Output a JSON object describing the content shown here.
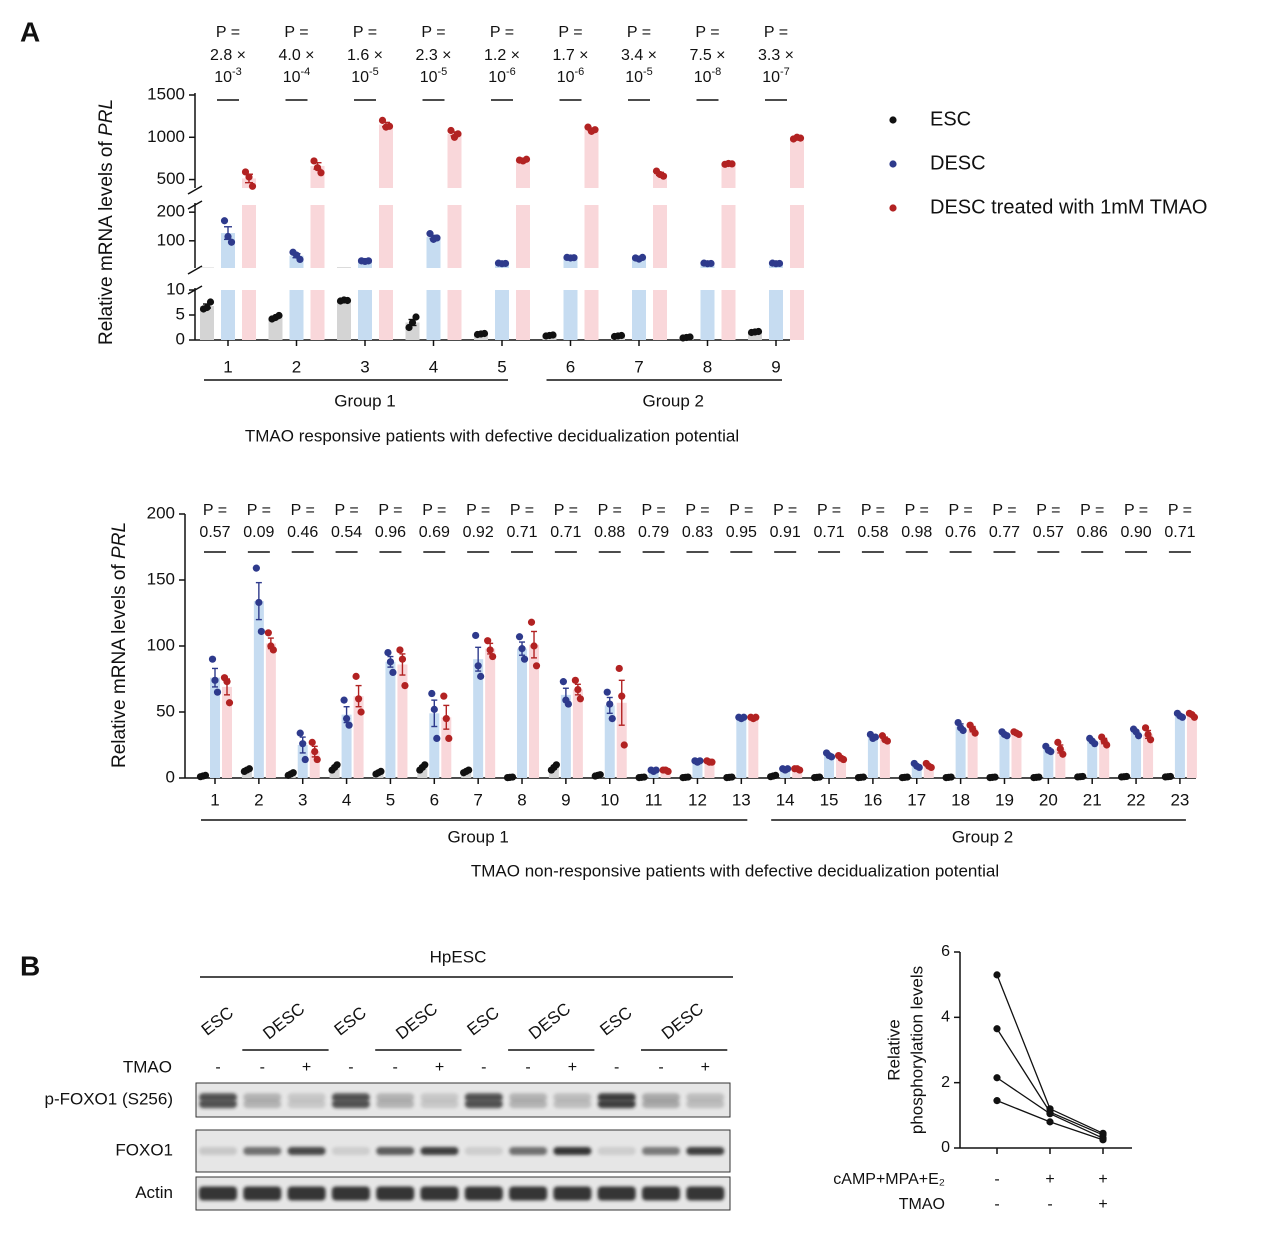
{
  "panels": [
    "A",
    "B"
  ],
  "chart_data": [
    {
      "type": "broken_bar",
      "ylabel": "Relative mRNA levels of ",
      "ylabel_italic": "PRL",
      "xlabel": "TMAO responsive patients with defective decidualization potential",
      "categories": [
        "1",
        "2",
        "3",
        "4",
        "5",
        "6",
        "7",
        "8",
        "9"
      ],
      "groups": [
        "Group 1",
        "Group 2"
      ],
      "p_prefix": "P =",
      "p_values": [
        {
          "coef": "2.8 ×",
          "base": "10",
          "exp": "-3"
        },
        {
          "coef": "4.0 ×",
          "base": "10",
          "exp": "-4"
        },
        {
          "coef": "1.6 ×",
          "base": "10",
          "exp": "-5"
        },
        {
          "coef": "2.3 ×",
          "base": "10",
          "exp": "-5"
        },
        {
          "coef": "1.2 ×",
          "base": "10",
          "exp": "-6"
        },
        {
          "coef": "1.7 ×",
          "base": "10",
          "exp": "-6"
        },
        {
          "coef": "3.4 ×",
          "base": "10",
          "exp": "-5"
        },
        {
          "coef": "7.5 ×",
          "base": "10",
          "exp": "-8"
        },
        {
          "coef": "3.3 ×",
          "base": "10",
          "exp": "-7"
        }
      ],
      "segments": [
        {
          "ylim": [
            0,
            10
          ],
          "yticks": [
            0,
            5,
            10
          ]
        },
        {
          "ylim": [
            5,
            225
          ],
          "yticks": [
            100,
            200
          ]
        },
        {
          "ylim": [
            400,
            1500
          ],
          "yticks": [
            500,
            1000,
            1500
          ]
        }
      ],
      "series": [
        {
          "name": "ESC",
          "color": "#111111",
          "bar_color": "#d4d4d4",
          "values": [
            6.8,
            4.5,
            7.9,
            3.5,
            1.2,
            0.9,
            0.8,
            0.5,
            1.6
          ],
          "errors": [
            0.4,
            0.2,
            0.1,
            0.6,
            0.1,
            0.1,
            0.1,
            0.1,
            0.1
          ],
          "points": [
            [
              6.2,
              6.5,
              7.6
            ],
            [
              4.2,
              4.5,
              4.9
            ],
            [
              7.8,
              8.0,
              7.9
            ],
            [
              2.5,
              3.5,
              4.6
            ],
            [
              1.1,
              1.2,
              1.3
            ],
            [
              0.8,
              0.9,
              1.0
            ],
            [
              0.7,
              0.8,
              0.9
            ],
            [
              0.4,
              0.5,
              0.6
            ],
            [
              1.5,
              1.6,
              1.7
            ]
          ]
        },
        {
          "name": "DESC",
          "color": "#2e3a8c",
          "bar_color": "#c6dcf1",
          "values": [
            127,
            48,
            29,
            113,
            21,
            41,
            39,
            21,
            21
          ],
          "errors": [
            22,
            7,
            1,
            6,
            1,
            1,
            2,
            1,
            1
          ],
          "points": [
            [
              170,
              115,
              95
            ],
            [
              60,
              50,
              35
            ],
            [
              30,
              28,
              30
            ],
            [
              125,
              105,
              110
            ],
            [
              22,
              20,
              21
            ],
            [
              42,
              40,
              41
            ],
            [
              40,
              36,
              42
            ],
            [
              22,
              20,
              21
            ],
            [
              22,
              20,
              21
            ]
          ]
        },
        {
          "name": "DESC treated with 1mM TMAO",
          "color": "#b22222",
          "bar_color": "#f9d7da",
          "values": [
            513,
            661,
            1150,
            1040,
            730,
            1093,
            567,
            685,
            990
          ],
          "errors": [
            50,
            38,
            26,
            23,
            6,
            15,
            18,
            3,
            6
          ],
          "points": [
            [
              590,
              530,
              420
            ],
            [
              720,
              640,
              580
            ],
            [
              1200,
              1120,
              1130
            ],
            [
              1080,
              1000,
              1040
            ],
            [
              730,
              720,
              740
            ],
            [
              1120,
              1070,
              1090
            ],
            [
              600,
              560,
              540
            ],
            [
              680,
              690,
              685
            ],
            [
              980,
              1000,
              990
            ]
          ]
        }
      ]
    },
    {
      "type": "bar",
      "ylabel": "Relative mRNA levels of ",
      "ylabel_italic": "PRL",
      "xlabel": "TMAO non-responsive patients with defective decidualization potential",
      "categories": [
        "1",
        "2",
        "3",
        "4",
        "5",
        "6",
        "7",
        "8",
        "9",
        "10",
        "11",
        "12",
        "13",
        "14",
        "15",
        "16",
        "17",
        "18",
        "19",
        "20",
        "21",
        "22",
        "23"
      ],
      "groups": [
        "Group 1",
        "Group 2"
      ],
      "p_prefix": "P =",
      "p_values": [
        "0.57",
        "0.09",
        "0.46",
        "0.54",
        "0.96",
        "0.69",
        "0.92",
        "0.71",
        "0.71",
        "0.88",
        "0.79",
        "0.83",
        "0.95",
        "0.91",
        "0.71",
        "0.58",
        "0.98",
        "0.76",
        "0.77",
        "0.57",
        "0.86",
        "0.90",
        "0.71"
      ],
      "ylim": [
        0,
        200
      ],
      "yticks": [
        0,
        50,
        100,
        150,
        200
      ],
      "series": [
        {
          "color": "#111111",
          "bar_color": "#d4d4d4",
          "values": [
            1.5,
            6,
            3,
            8,
            4,
            8,
            5,
            0.5,
            8,
            2,
            0.5,
            0.5,
            0.5,
            1.5,
            0.5,
            0.5,
            0.5,
            0.5,
            0.5,
            0.5,
            1,
            1,
            1
          ],
          "errors": [
            0.3,
            0.6,
            0.6,
            1.2,
            0.6,
            1.2,
            0.6,
            0.1,
            1.2,
            0.3,
            0.1,
            0.1,
            0.1,
            0.3,
            0.1,
            0.1,
            0.1,
            0.1,
            0.1,
            0.1,
            0.2,
            0.2,
            0.2
          ],
          "points": [
            [
              1,
              1.5,
              2
            ],
            [
              5,
              6,
              7
            ],
            [
              2,
              3,
              4
            ],
            [
              6,
              8,
              10
            ],
            [
              3,
              4,
              5
            ],
            [
              6,
              8,
              10
            ],
            [
              4,
              5,
              6
            ],
            [
              0.3,
              0.5,
              0.7
            ],
            [
              6,
              8,
              10
            ],
            [
              1.5,
              2,
              2.5
            ],
            [
              0.3,
              0.5,
              0.7
            ],
            [
              0.3,
              0.5,
              0.7
            ],
            [
              0.3,
              0.5,
              0.7
            ],
            [
              1,
              1.5,
              2
            ],
            [
              0.3,
              0.5,
              0.7
            ],
            [
              0.3,
              0.5,
              0.7
            ],
            [
              0.3,
              0.5,
              0.7
            ],
            [
              0.3,
              0.5,
              0.7
            ],
            [
              0.3,
              0.5,
              0.7
            ],
            [
              0.3,
              0.5,
              0.7
            ],
            [
              0.8,
              1,
              1.2
            ],
            [
              0.8,
              1,
              1.2
            ],
            [
              0.8,
              1,
              1.2
            ]
          ]
        },
        {
          "color": "#2e3a8c",
          "bar_color": "#c6dcf1",
          "values": [
            76,
            134,
            25,
            48,
            88,
            49,
            90,
            98,
            63,
            55,
            6,
            13,
            46,
            7,
            17,
            31,
            9,
            39,
            33,
            22,
            28,
            35,
            47
          ],
          "errors": [
            7,
            14,
            6,
            6,
            4,
            10,
            9,
            5,
            5,
            6,
            0.5,
            0.5,
            0.5,
            0.5,
            1,
            1,
            1,
            2,
            1,
            1,
            1,
            1,
            1
          ],
          "points": [
            [
              90,
              74,
              65
            ],
            [
              159,
              133,
              111
            ],
            [
              34,
              26,
              14
            ],
            [
              59,
              45,
              40
            ],
            [
              95,
              88,
              80
            ],
            [
              64,
              52,
              30
            ],
            [
              108,
              85,
              77
            ],
            [
              107,
              98,
              90
            ],
            [
              73,
              59,
              56
            ],
            [
              65,
              56,
              45
            ],
            [
              6,
              5,
              6
            ],
            [
              13,
              12,
              13
            ],
            [
              46,
              45,
              46
            ],
            [
              7,
              6,
              7
            ],
            [
              19,
              17,
              16
            ],
            [
              33,
              30,
              31
            ],
            [
              11,
              9,
              8
            ],
            [
              42,
              38,
              36
            ],
            [
              35,
              33,
              32
            ],
            [
              24,
              21,
              20
            ],
            [
              30,
              28,
              26
            ],
            [
              37,
              35,
              32
            ],
            [
              49,
              47,
              46
            ]
          ]
        },
        {
          "color": "#b22222",
          "bar_color": "#f9d7da",
          "values": [
            69,
            102,
            20,
            62,
            86,
            46,
            98,
            101,
            67,
            57,
            6,
            12,
            46,
            7,
            15,
            30,
            9,
            37,
            34,
            22,
            28,
            33,
            48
          ],
          "errors": [
            6,
            4,
            4,
            8,
            8,
            9,
            4,
            10,
            4,
            17,
            0.5,
            0.5,
            0.5,
            0.5,
            1,
            1,
            1,
            2,
            1,
            3,
            2,
            3,
            1
          ],
          "points": [
            [
              76,
              73,
              57
            ],
            [
              110,
              100,
              97
            ],
            [
              27,
              20,
              14
            ],
            [
              77,
              60,
              50
            ],
            [
              97,
              90,
              70
            ],
            [
              62,
              45,
              30
            ],
            [
              104,
              97,
              92
            ],
            [
              118,
              100,
              85
            ],
            [
              74,
              67,
              60
            ],
            [
              83,
              62,
              25
            ],
            [
              6,
              6,
              5
            ],
            [
              13,
              12,
              12
            ],
            [
              46,
              45,
              46
            ],
            [
              7,
              7,
              6
            ],
            [
              17,
              15,
              14
            ],
            [
              32,
              29,
              28
            ],
            [
              11,
              9,
              8
            ],
            [
              40,
              37,
              34
            ],
            [
              35,
              34,
              33
            ],
            [
              27,
              22,
              18
            ],
            [
              31,
              28,
              25
            ],
            [
              38,
              33,
              29
            ],
            [
              49,
              48,
              46
            ]
          ]
        }
      ]
    },
    {
      "type": "line",
      "ylabel": [
        "Relative",
        "phosphorylation levels"
      ],
      "conditions": [
        {
          "label": "cAMP+MPA+E₂",
          "signs": [
            "-",
            "+",
            "+"
          ]
        },
        {
          "label": "TMAO",
          "signs": [
            "-",
            "-",
            "+"
          ]
        }
      ],
      "ylim": [
        0,
        6
      ],
      "yticks": [
        0,
        2,
        4,
        6
      ],
      "color": "#111111",
      "series": [
        {
          "values": [
            5.3,
            1.2,
            0.45
          ]
        },
        {
          "values": [
            3.65,
            1.1,
            0.4
          ]
        },
        {
          "values": [
            2.15,
            1.05,
            0.3
          ]
        },
        {
          "values": [
            1.45,
            0.8,
            0.25
          ]
        }
      ]
    }
  ],
  "blot": {
    "title": "HpESC",
    "treatment_label": "TMAO",
    "lane_groups": [
      "ESC",
      "DESC",
      "ESC",
      "DESC",
      "ESC",
      "DESC",
      "ESC",
      "DESC"
    ],
    "treatment": [
      "-",
      "-",
      "+",
      "-",
      "-",
      "+",
      "-",
      "-",
      "+",
      "-",
      "-",
      "+"
    ],
    "rows": [
      "p-FOXO1 (S256)",
      "FOXO1",
      "Actin"
    ]
  }
}
